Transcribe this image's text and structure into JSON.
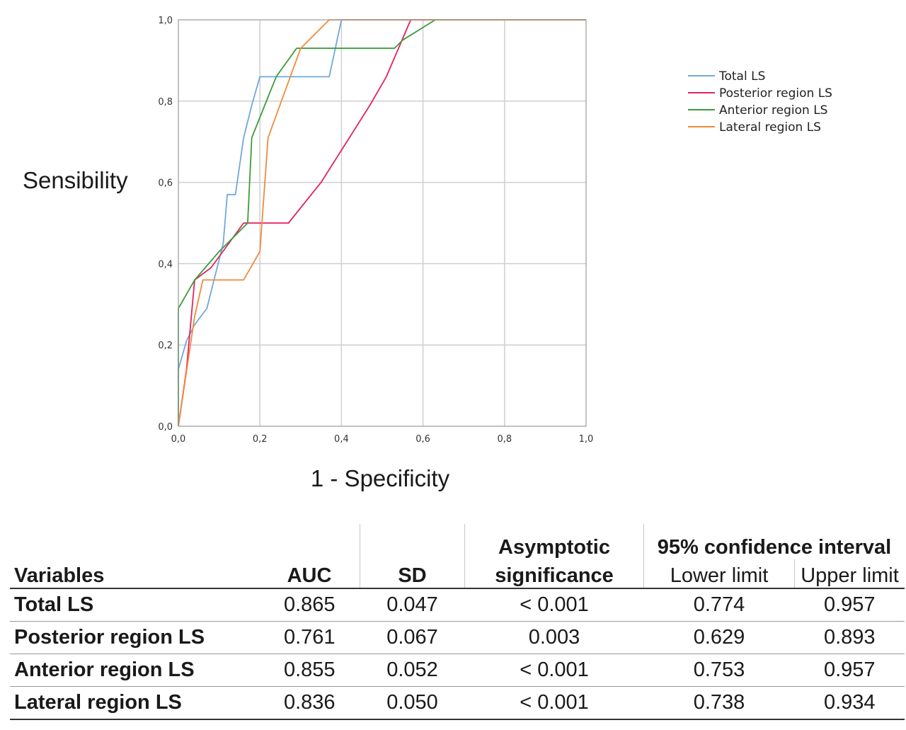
{
  "chart_data": {
    "type": "line",
    "xlabel": "1 - Specificity",
    "ylabel": "Sensibility",
    "xlim": [
      0,
      1
    ],
    "ylim": [
      0,
      1
    ],
    "x_ticks": [
      "0,0",
      "0,2",
      "0,4",
      "0,6",
      "0,8",
      "1,0"
    ],
    "y_ticks": [
      "0,0",
      "0,2",
      "0,4",
      "0,6",
      "0,8",
      "1,0"
    ],
    "grid": true,
    "legend_position": "right",
    "series": [
      {
        "name": "Total LS",
        "color": "#6fa8dc",
        "points": [
          [
            0,
            0
          ],
          [
            0,
            0.14
          ],
          [
            0.02,
            0.21
          ],
          [
            0.04,
            0.25
          ],
          [
            0.07,
            0.29
          ],
          [
            0.11,
            0.45
          ],
          [
            0.12,
            0.57
          ],
          [
            0.14,
            0.57
          ],
          [
            0.16,
            0.71
          ],
          [
            0.18,
            0.79
          ],
          [
            0.2,
            0.86
          ],
          [
            0.37,
            0.86
          ],
          [
            0.4,
            1.0
          ],
          [
            1.0,
            1.0
          ]
        ]
      },
      {
        "name": "Posterior region LS",
        "color": "#e0245e",
        "points": [
          [
            0,
            0
          ],
          [
            0.02,
            0.14
          ],
          [
            0.04,
            0.36
          ],
          [
            0.08,
            0.39
          ],
          [
            0.16,
            0.5
          ],
          [
            0.27,
            0.5
          ],
          [
            0.35,
            0.6
          ],
          [
            0.47,
            0.79
          ],
          [
            0.51,
            0.86
          ],
          [
            0.57,
            1.0
          ],
          [
            1.0,
            1.0
          ]
        ]
      },
      {
        "name": "Anterior region LS",
        "color": "#3d9a3d",
        "points": [
          [
            0,
            0
          ],
          [
            0,
            0.29
          ],
          [
            0.04,
            0.36
          ],
          [
            0.1,
            0.43
          ],
          [
            0.17,
            0.5
          ],
          [
            0.18,
            0.71
          ],
          [
            0.24,
            0.86
          ],
          [
            0.29,
            0.93
          ],
          [
            0.53,
            0.93
          ],
          [
            0.55,
            0.95
          ],
          [
            0.63,
            1.0
          ],
          [
            1.0,
            1.0
          ]
        ]
      },
      {
        "name": "Lateral region LS",
        "color": "#f08a3c",
        "points": [
          [
            0,
            0
          ],
          [
            0.04,
            0.27
          ],
          [
            0.06,
            0.36
          ],
          [
            0.16,
            0.36
          ],
          [
            0.2,
            0.43
          ],
          [
            0.22,
            0.71
          ],
          [
            0.3,
            0.93
          ],
          [
            0.37,
            1.0
          ],
          [
            1.0,
            1.0
          ]
        ]
      }
    ]
  },
  "table": {
    "headers": {
      "variables": "Variables",
      "auc": "AUC",
      "sd": "SD",
      "asymptotic_line1": "Asymptotic",
      "asymptotic_line2": "significance",
      "ci": "95% confidence interval",
      "lower": "Lower limit",
      "upper": "Upper limit"
    },
    "rows": [
      {
        "variable": "Total LS",
        "auc": "0.865",
        "sd": "0.047",
        "sig": "< 0.001",
        "lower": "0.774",
        "upper": "0.957"
      },
      {
        "variable": "Posterior region LS",
        "auc": "0.761",
        "sd": "0.067",
        "sig": "0.003",
        "lower": "0.629",
        "upper": "0.893"
      },
      {
        "variable": "Anterior region LS",
        "auc": "0.855",
        "sd": "0.052",
        "sig": "< 0.001",
        "lower": "0.753",
        "upper": "0.957"
      },
      {
        "variable": "Lateral region LS",
        "auc": "0.836",
        "sd": "0.050",
        "sig": "< 0.001",
        "lower": "0.738",
        "upper": "0.934"
      }
    ]
  }
}
